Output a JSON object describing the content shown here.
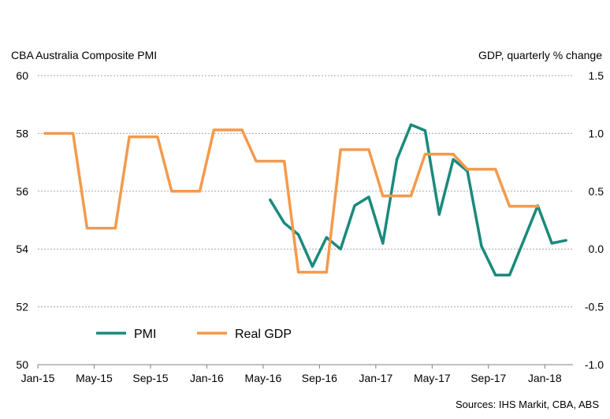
{
  "chart_data": {
    "type": "line",
    "left_axis_title": "CBA Australia Composite  PMI",
    "right_axis_title": "GDP, quarterly % change",
    "source": "Sources: IHS Markit, CBA, ABS",
    "x_tick_labels": [
      "Jan-15",
      "May-15",
      "Sep-15",
      "Jan-16",
      "May-16",
      "Sep-16",
      "Jan-17",
      "May-17",
      "Sep-17",
      "Jan-18"
    ],
    "x_start": "Jan-15",
    "left_ylim": [
      50,
      60
    ],
    "left_yticks": [
      "50",
      "52",
      "54",
      "56",
      "58",
      "60"
    ],
    "right_ylim": [
      -1.0,
      1.5
    ],
    "right_yticks": [
      "-1.0",
      "-0.5",
      "0.0",
      "0.5",
      "1.0",
      "1.5"
    ],
    "grid": "horizontal dotted",
    "legend_position": "bottom-left",
    "series": [
      {
        "name": "PMI",
        "axis": "left",
        "color": "#1a8a7c",
        "x": [
          "May-16",
          "Jun-16",
          "Jul-16",
          "Aug-16",
          "Sep-16",
          "Oct-16",
          "Nov-16",
          "Dec-16",
          "Jan-17",
          "Feb-17",
          "Mar-17",
          "Apr-17",
          "May-17",
          "Jun-17",
          "Jul-17",
          "Aug-17",
          "Sep-17",
          "Oct-17",
          "Nov-17",
          "Dec-17",
          "Jan-18",
          "Feb-18"
        ],
        "values": [
          55.7,
          54.9,
          54.5,
          53.4,
          54.4,
          54.0,
          55.5,
          55.8,
          54.2,
          57.1,
          58.3,
          58.1,
          55.2,
          57.1,
          56.7,
          54.1,
          53.1,
          53.1,
          54.3,
          55.5,
          54.2,
          54.3
        ]
      },
      {
        "name": "Real GDP",
        "axis": "right",
        "color": "#f49a4c",
        "x": [
          "Jan-15",
          "Mar-15",
          "Apr-15",
          "Jun-15",
          "Jul-15",
          "Sep-15",
          "Oct-15",
          "Dec-15",
          "Jan-16",
          "Mar-16",
          "Apr-16",
          "Jun-16",
          "Jul-16",
          "Sep-16",
          "Oct-16",
          "Dec-16",
          "Jan-17",
          "Mar-17",
          "Apr-17",
          "Jun-17",
          "Jul-17",
          "Sep-17",
          "Oct-17",
          "Dec-17"
        ],
        "values": [
          1.0,
          1.0,
          0.18,
          0.18,
          0.97,
          0.97,
          0.5,
          0.5,
          1.03,
          1.03,
          0.76,
          0.76,
          -0.2,
          -0.2,
          0.86,
          0.86,
          0.46,
          0.46,
          0.82,
          0.82,
          0.69,
          0.69,
          0.37,
          0.37
        ]
      }
    ]
  }
}
